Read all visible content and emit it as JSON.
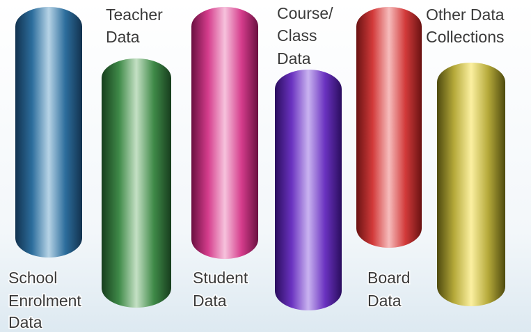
{
  "nodes": [
    {
      "label": [
        "School",
        "Enrolment",
        "Data"
      ]
    },
    {
      "label": [
        "Teacher",
        "Data"
      ]
    },
    {
      "label": [
        "Student",
        "Data"
      ]
    },
    {
      "label": [
        "Course/",
        "Class",
        "Data"
      ]
    },
    {
      "label": [
        "Board",
        "Data"
      ]
    },
    {
      "label": [
        "Other Data",
        "Collections"
      ]
    }
  ]
}
